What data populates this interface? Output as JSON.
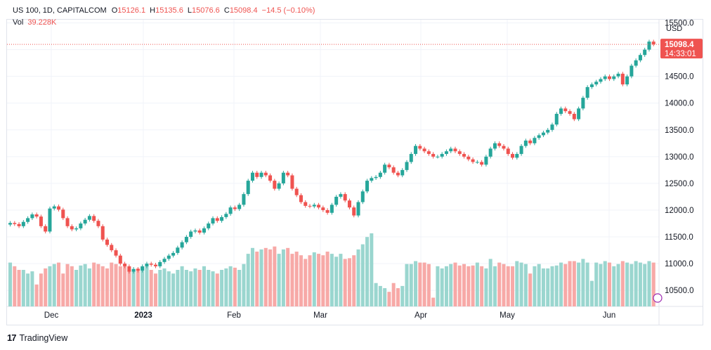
{
  "header": {
    "symbol": "US 100, 1D, CAPITALCOM",
    "o_label": "O",
    "o_value": "15126.1",
    "h_label": "H",
    "h_value": "15135.6",
    "l_label": "L",
    "l_value": "15076.6",
    "c_label": "C",
    "c_value": "15098.4",
    "change": "−14.5 (−0.10%)",
    "vol_label": "Vol",
    "vol_value": "39.228K"
  },
  "price_tag": {
    "price": "15098.4",
    "countdown": "14:33:01"
  },
  "footer": {
    "brand": "TradingView",
    "logo": "tradingview-logo"
  },
  "colors": {
    "up": "#26a69a",
    "down": "#ef5350",
    "vol_up": "#9ad6cf",
    "vol_down": "#f7a9a7",
    "grid": "#f0f3fa",
    "axis_text": "#131722"
  },
  "chart_data": {
    "type": "candlestick",
    "currency": "USD",
    "y_ticks": [
      "15500.0",
      "15000.0",
      "14500.0",
      "14000.0",
      "13500.0",
      "13000.0",
      "12500.0",
      "12000.0",
      "11500.0",
      "11000.0",
      "10500.0"
    ],
    "x_ticks": [
      "Dec",
      "2023",
      "Feb",
      "Mar",
      "Apr",
      "May",
      "Jun"
    ],
    "ylim": [
      10200,
      15560
    ],
    "last_price": 15098.4,
    "close_series": [
      11760,
      11740,
      11700,
      11780,
      11850,
      11920,
      11880,
      11700,
      11600,
      12030,
      12070,
      12010,
      11850,
      11700,
      11640,
      11660,
      11750,
      11820,
      11890,
      11800,
      11700,
      11450,
      11350,
      11250,
      11150,
      11000,
      10950,
      10850,
      10900,
      10870,
      10950,
      11000,
      10980,
      10950,
      11030,
      11090,
      11150,
      11200,
      11300,
      11400,
      11500,
      11600,
      11620,
      11580,
      11660,
      11750,
      11850,
      11800,
      11870,
      11930,
      12050,
      12020,
      12100,
      12300,
      12550,
      12700,
      12620,
      12700,
      12650,
      12550,
      12400,
      12500,
      12700,
      12650,
      12400,
      12280,
      12150,
      12080,
      12070,
      12100,
      12050,
      12000,
      11950,
      12100,
      12250,
      12300,
      12180,
      12050,
      11900,
      12150,
      12350,
      12550,
      12600,
      12620,
      12700,
      12850,
      12800,
      12700,
      12650,
      12750,
      12900,
      13050,
      13200,
      13150,
      13100,
      13050,
      13000,
      13000,
      13050,
      13100,
      13150,
      13100,
      13050,
      13000,
      12950,
      12900,
      12900,
      12850,
      13000,
      13150,
      13250,
      13200,
      13150,
      13050,
      12980,
      13050,
      13200,
      13300,
      13250,
      13350,
      13400,
      13450,
      13500,
      13600,
      13800,
      13900,
      13850,
      13800,
      13700,
      13900,
      14100,
      14300,
      14350,
      14400,
      14450,
      14500,
      14450,
      14500,
      14550,
      14350,
      14500,
      14700,
      14800,
      14900,
      15000,
      15150,
      15098.4
    ],
    "volume_relative": [
      0.6,
      0.55,
      0.5,
      0.5,
      0.45,
      0.48,
      0.3,
      0.45,
      0.52,
      0.55,
      0.58,
      0.6,
      0.45,
      0.58,
      0.55,
      0.5,
      0.56,
      0.58,
      0.52,
      0.6,
      0.58,
      0.55,
      0.52,
      0.6,
      0.58,
      0.55,
      0.55,
      0.5,
      0.48,
      0.52,
      0.53,
      0.55,
      0.5,
      0.45,
      0.5,
      0.52,
      0.48,
      0.45,
      0.5,
      0.55,
      0.5,
      0.48,
      0.52,
      0.5,
      0.55,
      0.5,
      0.48,
      0.45,
      0.5,
      0.52,
      0.55,
      0.53,
      0.5,
      0.58,
      0.72,
      0.8,
      0.75,
      0.78,
      0.8,
      0.78,
      0.82,
      0.72,
      0.78,
      0.8,
      0.72,
      0.75,
      0.7,
      0.65,
      0.7,
      0.74,
      0.72,
      0.7,
      0.75,
      0.72,
      0.68,
      0.72,
      0.65,
      0.66,
      0.7,
      0.78,
      0.85,
      0.95,
      1.0,
      0.32,
      0.28,
      0.25,
      0.2,
      0.32,
      0.25,
      0.28,
      0.58,
      0.58,
      0.62,
      0.6,
      0.6,
      0.58,
      0.12,
      0.55,
      0.52,
      0.55,
      0.58,
      0.6,
      0.56,
      0.58,
      0.55,
      0.56,
      0.6,
      0.55,
      0.52,
      0.65,
      0.55,
      0.6,
      0.58,
      0.55,
      0.55,
      0.62,
      0.6,
      0.58,
      0.45,
      0.55,
      0.58,
      0.52,
      0.52,
      0.55,
      0.56,
      0.6,
      0.58,
      0.62,
      0.62,
      0.6,
      0.65,
      0.6,
      0.35,
      0.6,
      0.58,
      0.62,
      0.6,
      0.55,
      0.58,
      0.62,
      0.6,
      0.58,
      0.62,
      0.6,
      0.58,
      0.62,
      0.6
    ]
  }
}
